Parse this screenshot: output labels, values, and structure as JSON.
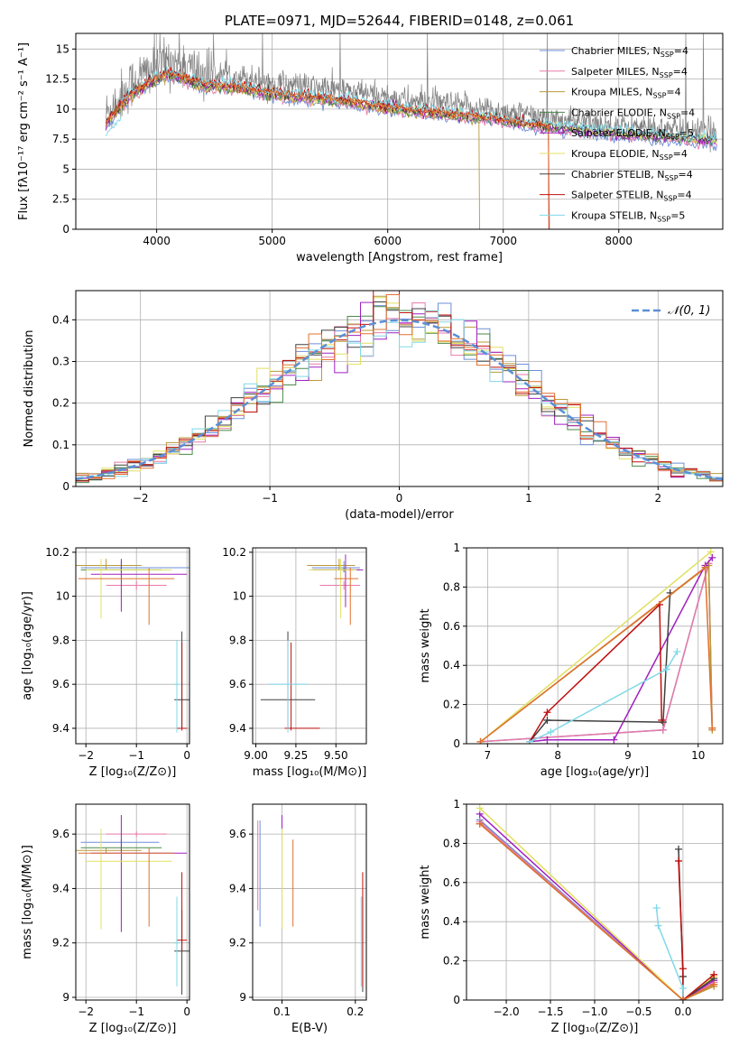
{
  "figure": {
    "title": "PLATE=0971, MJD=52644, FIBERID=0148, z=0.061"
  },
  "colors": {
    "data": "#808080",
    "models": [
      "#6f8fd8",
      "#e87aa8",
      "#b89a3a",
      "#4a8a4a",
      "#a020c0",
      "#e0e060",
      "#404040",
      "#c01010",
      "#80d8e8"
    ],
    "gauss": "#5b8fd6"
  },
  "chart_data": [
    {
      "id": "spectrum",
      "type": "line",
      "title": "PLATE=0971, MJD=52644, FIBERID=0148, z=0.061",
      "xlabel": "wavelength [Angstrom, rest frame]",
      "ylabel": "Flux [fλ10⁻¹⁷ erg cm⁻² s⁻¹ A⁻¹]",
      "xlim": [
        3300,
        8900
      ],
      "ylim": [
        0,
        16.3
      ],
      "xticks": [
        4000,
        5000,
        6000,
        7000,
        8000
      ],
      "yticks": [
        0.0,
        2.5,
        5.0,
        7.5,
        10.0,
        12.5,
        15.0
      ],
      "legend_position": "top-right",
      "legend": [
        {
          "name": "Chabrier MILES, N",
          "sub": "SSP",
          "tail": "=4"
        },
        {
          "name": "Salpeter MILES, N",
          "sub": "SSP",
          "tail": "=4"
        },
        {
          "name": "Kroupa MILES, N",
          "sub": "SSP",
          "tail": "=4"
        },
        {
          "name": "Chabrier ELODIE, N",
          "sub": "SSP",
          "tail": "=4"
        },
        {
          "name": "Salpeter ELODIE, N",
          "sub": "SSP",
          "tail": "=5"
        },
        {
          "name": "Kroupa ELODIE, N",
          "sub": "SSP",
          "tail": "=4"
        },
        {
          "name": "Chabrier STELIB, N",
          "sub": "SSP",
          "tail": "=4"
        },
        {
          "name": "Salpeter STELIB, N",
          "sub": "SSP",
          "tail": "=4"
        },
        {
          "name": "Kroupa STELIB, N",
          "sub": "SSP",
          "tail": "=5"
        }
      ],
      "continuum": {
        "x": [
          3560,
          3600,
          3700,
          3800,
          3900,
          4000,
          4100,
          4200,
          4300,
          4400,
          4600,
          4800,
          5000,
          5200,
          5400,
          5600,
          5800,
          6000,
          6200,
          6400,
          6600,
          6800,
          7000,
          7200,
          7400,
          7600,
          7800,
          8000,
          8200,
          8400,
          8600,
          8850
        ],
        "y": [
          9.5,
          10.0,
          11.2,
          12.3,
          13.0,
          13.6,
          14.0,
          13.8,
          13.3,
          13.0,
          12.9,
          12.6,
          12.2,
          12.0,
          11.8,
          11.6,
          11.3,
          11.0,
          10.7,
          10.5,
          10.3,
          10.1,
          9.8,
          9.5,
          9.2,
          9.0,
          8.8,
          8.6,
          8.5,
          8.3,
          8.2,
          8.0
        ]
      }
    },
    {
      "id": "residuals",
      "type": "line",
      "xlabel": "(data-model)/error",
      "ylabel": "Normed distribution",
      "xlim": [
        -2.5,
        2.5
      ],
      "ylim": [
        0,
        0.47
      ],
      "xticks": [
        -2,
        -1,
        0,
        1,
        2
      ],
      "yticks": [
        0.0,
        0.1,
        0.2,
        0.3,
        0.4
      ],
      "legend_position": "top-right",
      "legend": [
        {
          "name": "𝒩(0, 1)"
        }
      ],
      "gaussian": {
        "mean": 0,
        "sigma": 1
      }
    },
    {
      "id": "age-vs-Z",
      "type": "scatter",
      "xlabel": "Z [log₁₀(Z/Z⊙)]",
      "ylabel": "age  [log₁₀(age/yr)]",
      "xlim": [
        -2.2,
        0.05
      ],
      "ylim": [
        9.33,
        10.22
      ],
      "xticks": [
        -2,
        -1,
        0
      ],
      "yticks": [
        9.4,
        9.6,
        9.8,
        10.0,
        10.2
      ],
      "errorbars": [
        {
          "x": -1.3,
          "y": 10.13,
          "xerr": [
            0.8,
            1.4
          ],
          "yerr": [
            0.02,
            0.03
          ],
          "c": 0
        },
        {
          "x": -1.0,
          "y": 10.05,
          "xerr": [
            0.6,
            0.6
          ],
          "yerr": [
            0.02,
            0.02
          ],
          "c": 1
        },
        {
          "x": -1.6,
          "y": 10.14,
          "xerr": [
            0.6,
            0.7
          ],
          "yerr": [
            0.02,
            0.03
          ],
          "c": 2
        },
        {
          "x": -1.3,
          "y": 10.12,
          "xerr": [
            0.8,
            0.8
          ],
          "yerr": [
            0.01,
            0.01
          ],
          "c": 3
        },
        {
          "x": -1.3,
          "y": 10.1,
          "xerr": [
            0.6,
            1.3
          ],
          "yerr": [
            0.17,
            0.07
          ],
          "c": 4
        },
        {
          "x": -1.7,
          "y": 10.12,
          "xerr": [
            0.3,
            1.4
          ],
          "yerr": [
            0.22,
            0.05
          ],
          "c": 5
        },
        {
          "x": -0.1,
          "y": 9.53,
          "xerr": [
            0.15,
            0.15
          ],
          "yerr": [
            0.13,
            0.31
          ],
          "c": 6
        },
        {
          "x": -0.1,
          "y": 9.4,
          "xerr": [
            0.1,
            0.1
          ],
          "yerr": [
            0.01,
            0.39
          ],
          "c": 7
        },
        {
          "x": -0.2,
          "y": 9.6,
          "xerr": [
            0.05,
            0.05
          ],
          "yerr": [
            0.22,
            0.2
          ],
          "c": 8
        },
        {
          "x": -0.75,
          "y": 10.08,
          "xerr": [
            1.4,
            0.5
          ],
          "yerr": [
            0.21,
            0.05
          ],
          "c": 9
        }
      ]
    },
    {
      "id": "age-vs-mass",
      "type": "scatter",
      "xlabel": "mass [log₁₀(M/M⊙)]",
      "xlim": [
        8.98,
        9.69
      ],
      "ylim": [
        9.33,
        10.22
      ],
      "xticks": [
        9.0,
        9.25,
        9.5
      ],
      "xticklabels": [
        "9.00",
        "9.25",
        "9.50"
      ],
      "yticks": [
        9.4,
        9.6,
        9.8,
        10.0,
        10.2
      ],
      "errorbars": [
        {
          "x": 9.55,
          "y": 10.13,
          "xerr": [
            0.2,
            0.1
          ],
          "yerr": [
            0.02,
            0.03
          ],
          "c": 0
        },
        {
          "x": 9.55,
          "y": 10.05,
          "xerr": [
            0.15,
            0.1
          ],
          "yerr": [
            0.02,
            0.02
          ],
          "c": 1
        },
        {
          "x": 9.52,
          "y": 10.14,
          "xerr": [
            0.2,
            0.1
          ],
          "yerr": [
            0.02,
            0.03
          ],
          "c": 2
        },
        {
          "x": 9.55,
          "y": 10.12,
          "xerr": [
            0.2,
            0.1
          ],
          "yerr": [
            0.01,
            0.01
          ],
          "c": 3
        },
        {
          "x": 9.56,
          "y": 10.12,
          "xerr": [
            0.2,
            0.11
          ],
          "yerr": [
            0.17,
            0.07
          ],
          "c": 4
        },
        {
          "x": 9.53,
          "y": 10.12,
          "xerr": [
            0.2,
            0.1
          ],
          "yerr": [
            0.22,
            0.05
          ],
          "c": 5
        },
        {
          "x": 9.2,
          "y": 9.53,
          "xerr": [
            0.17,
            0.17
          ],
          "yerr": [
            0.13,
            0.31
          ],
          "c": 6
        },
        {
          "x": 9.22,
          "y": 9.4,
          "xerr": [
            0.04,
            0.18
          ],
          "yerr": [
            0.01,
            0.39
          ],
          "c": 7
        },
        {
          "x": 9.2,
          "y": 9.6,
          "xerr": [
            0.12,
            0.12
          ],
          "yerr": [
            0.22,
            0.2
          ],
          "c": 8
        },
        {
          "x": 9.59,
          "y": 10.08,
          "xerr": [
            0.1,
            0.05
          ],
          "yerr": [
            0.21,
            0.05
          ],
          "c": 9
        }
      ]
    },
    {
      "id": "mass-weight-vs-age",
      "type": "line",
      "xlabel": "age  [log₁₀(age/yr)]",
      "ylabel": "mass weight",
      "xlim": [
        6.7,
        10.35
      ],
      "ylim": [
        0,
        1.0
      ],
      "xticks": [
        7,
        8,
        9,
        10
      ],
      "yticks": [
        0.0,
        0.2,
        0.4,
        0.6,
        0.8,
        1.0
      ],
      "series": [
        {
          "c": 0,
          "x": [
            6.9,
            9.5,
            10.15,
            10.2
          ],
          "y": [
            0.01,
            0.07,
            0.92,
            0.08
          ]
        },
        {
          "c": 1,
          "x": [
            6.9,
            9.5,
            10.15,
            10.2
          ],
          "y": [
            0.01,
            0.07,
            0.92,
            0.08
          ]
        },
        {
          "c": 2,
          "x": [
            6.9,
            10.15,
            10.2
          ],
          "y": [
            0.01,
            0.91,
            0.07
          ]
        },
        {
          "c": 4,
          "x": [
            7.6,
            7.85,
            8.8,
            10.1,
            10.2
          ],
          "y": [
            0.01,
            0.02,
            0.02,
            0.91,
            0.95
          ]
        },
        {
          "c": 5,
          "x": [
            6.9,
            10.18
          ],
          "y": [
            0.01,
            0.98
          ]
        },
        {
          "c": 6,
          "x": [
            7.6,
            7.85,
            9.5,
            9.6
          ],
          "y": [
            0.01,
            0.12,
            0.11,
            0.77
          ]
        },
        {
          "c": 7,
          "x": [
            7.6,
            7.85,
            9.45,
            9.48
          ],
          "y": [
            0.01,
            0.16,
            0.71,
            0.12
          ]
        },
        {
          "c": 8,
          "x": [
            7.6,
            7.9,
            9.55,
            9.7
          ],
          "y": [
            0.01,
            0.06,
            0.38,
            0.47
          ]
        },
        {
          "c": 9,
          "x": [
            6.9,
            10.1,
            10.2
          ],
          "y": [
            0.01,
            0.9,
            0.08
          ]
        }
      ]
    },
    {
      "id": "mass-vs-Z",
      "type": "scatter",
      "xlabel": "Z [log₁₀(Z/Z⊙)]",
      "ylabel": "mass [log₁₀(M/M⊙)]",
      "xlim": [
        -2.2,
        0.05
      ],
      "ylim": [
        8.99,
        9.71
      ],
      "xticks": [
        -2,
        -1,
        0
      ],
      "yticks": [
        9.0,
        9.2,
        9.4,
        9.6
      ],
      "errorbars": [
        {
          "x": -1.3,
          "y": 9.57,
          "xerr": [
            0.8,
            0.75
          ],
          "yerr": [
            0.01,
            0.01
          ],
          "c": 0
        },
        {
          "x": -1.0,
          "y": 9.6,
          "xerr": [
            0.6,
            0.6
          ],
          "yerr": [
            0.01,
            0.01
          ],
          "c": 1
        },
        {
          "x": -1.6,
          "y": 9.54,
          "xerr": [
            0.6,
            0.7
          ],
          "yerr": [
            0.01,
            0.01
          ],
          "c": 2
        },
        {
          "x": -1.3,
          "y": 9.55,
          "xerr": [
            0.8,
            0.8
          ],
          "yerr": [
            0.01,
            0.01
          ],
          "c": 3
        },
        {
          "x": -1.3,
          "y": 9.53,
          "xerr": [
            0.6,
            1.3
          ],
          "yerr": [
            0.29,
            0.14
          ],
          "c": 4
        },
        {
          "x": -1.7,
          "y": 9.5,
          "xerr": [
            0.3,
            1.4
          ],
          "yerr": [
            0.25,
            0.12
          ],
          "c": 5
        },
        {
          "x": -0.1,
          "y": 9.17,
          "xerr": [
            0.15,
            0.15
          ],
          "yerr": [
            0.16,
            0.15
          ],
          "c": 6
        },
        {
          "x": -0.1,
          "y": 9.21,
          "xerr": [
            0.1,
            0.1
          ],
          "yerr": [
            0.04,
            0.25
          ],
          "c": 7
        },
        {
          "x": -0.2,
          "y": 9.2,
          "xerr": [
            0.05,
            0.05
          ],
          "yerr": [
            0.16,
            0.17
          ],
          "c": 8
        },
        {
          "x": -0.75,
          "y": 9.53,
          "xerr": [
            1.4,
            0.5
          ],
          "yerr": [
            0.27,
            0.02
          ],
          "c": 9
        }
      ]
    },
    {
      "id": "mass-vs-EBV",
      "type": "scatter",
      "xlabel": "E(B-V)",
      "xlim": [
        0.06,
        0.215
      ],
      "ylim": [
        8.99,
        9.71
      ],
      "xticks": [
        0.1,
        0.2
      ],
      "yticks": [
        9.0,
        9.2,
        9.4,
        9.6
      ],
      "errorbars": [
        {
          "x": 0.07,
          "y": 9.57,
          "xerr": [
            0.0,
            0.0
          ],
          "yerr": [
            0.31,
            0.08
          ],
          "c": 0
        },
        {
          "x": 0.067,
          "y": 9.6,
          "xerr": [
            0.0,
            0.0
          ],
          "yerr": [
            0.28,
            0.05
          ],
          "c": 1
        },
        {
          "x": 0.1,
          "y": 9.54,
          "xerr": [
            0.0,
            0.0
          ],
          "yerr": [
            0.29,
            0.09
          ],
          "c": 2
        },
        {
          "x": 0.1,
          "y": 9.55,
          "xerr": [
            0.0,
            0.0
          ],
          "yerr": [
            0.3,
            0.12
          ],
          "c": 4
        },
        {
          "x": 0.1,
          "y": 9.5,
          "xerr": [
            0.0,
            0.0
          ],
          "yerr": [
            0.25,
            0.12
          ],
          "c": 5
        },
        {
          "x": 0.21,
          "y": 9.2,
          "xerr": [
            0.0,
            0.0
          ],
          "yerr": [
            0.18,
            0.17
          ],
          "c": 6
        },
        {
          "x": 0.21,
          "y": 9.21,
          "xerr": [
            0.0,
            0.0
          ],
          "yerr": [
            0.17,
            0.25
          ],
          "c": 7
        },
        {
          "x": 0.208,
          "y": 9.2,
          "xerr": [
            0.0,
            0.0
          ],
          "yerr": [
            0.16,
            0.17
          ],
          "c": 8
        },
        {
          "x": 0.115,
          "y": 9.53,
          "xerr": [
            0.0,
            0.0
          ],
          "yerr": [
            0.27,
            0.05
          ],
          "c": 9
        }
      ]
    },
    {
      "id": "mass-weight-vs-Z",
      "type": "line",
      "xlabel": "Z [log₁₀(Z/Z⊙)]",
      "ylabel": "mass weight",
      "xlim": [
        -2.45,
        0.45
      ],
      "ylim": [
        0,
        1.0
      ],
      "xticks": [
        -2.0,
        -1.5,
        -1.0,
        -0.5,
        0.0
      ],
      "xticklabels": [
        "−2.0",
        "−1.5",
        "−1.0",
        "−0.5",
        "0.0"
      ],
      "yticks": [
        0.0,
        0.2,
        0.4,
        0.6,
        0.8,
        1.0
      ],
      "series": [
        {
          "c": 0,
          "x": [
            -2.3,
            0.0,
            0.35
          ],
          "y": [
            0.92,
            0.0,
            0.08
          ]
        },
        {
          "c": 1,
          "x": [
            -2.3,
            0.0,
            0.35
          ],
          "y": [
            0.91,
            0.0,
            0.09
          ]
        },
        {
          "c": 2,
          "x": [
            -2.3,
            0.0,
            0.35
          ],
          "y": [
            0.9,
            0.0,
            0.07
          ]
        },
        {
          "c": 4,
          "x": [
            -2.3,
            0.0,
            0.35
          ],
          "y": [
            0.95,
            0.0,
            0.1
          ]
        },
        {
          "c": 5,
          "x": [
            -2.3,
            0.0,
            0.35
          ],
          "y": [
            0.98,
            0.0,
            0.12
          ]
        },
        {
          "c": 6,
          "x": [
            -0.05,
            0.0,
            0.0,
            0.35
          ],
          "y": [
            0.77,
            0.12,
            0.0,
            0.11
          ]
        },
        {
          "c": 7,
          "x": [
            -0.05,
            0.0,
            0.0,
            0.35
          ],
          "y": [
            0.71,
            0.16,
            0.0,
            0.13
          ]
        },
        {
          "c": 8,
          "x": [
            -0.3,
            -0.28,
            0.0,
            0.0
          ],
          "y": [
            0.47,
            0.38,
            0.06,
            0.0
          ]
        },
        {
          "c": 9,
          "x": [
            -2.3,
            0.0,
            0.35
          ],
          "y": [
            0.9,
            0.0,
            0.08
          ]
        }
      ]
    }
  ]
}
